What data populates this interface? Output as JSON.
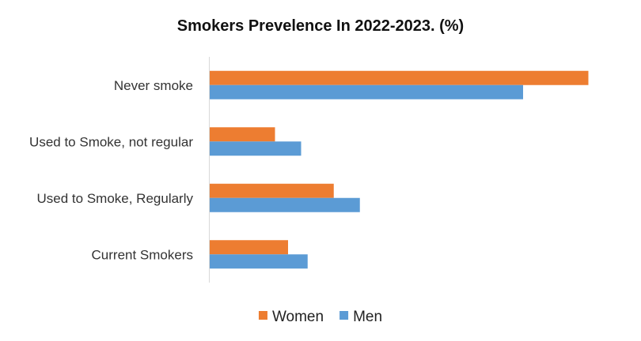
{
  "chart_data": {
    "type": "bar",
    "orientation": "horizontal",
    "title": "Smokers Prevelence In 2022-2023. (%)",
    "categories": [
      "Never smoke",
      "Used to Smoke, not regular",
      "Used to Smoke, Regularly",
      "Current Smokers"
    ],
    "series": [
      {
        "name": "Women",
        "color": "#ED7D31",
        "values": [
          58,
          10,
          19,
          12
        ]
      },
      {
        "name": "Men",
        "color": "#5B9BD5",
        "values": [
          48,
          14,
          23,
          15
        ]
      }
    ],
    "xlabel": "",
    "ylabel": "",
    "xlim": [
      0,
      60
    ],
    "grid": false,
    "value_axis_labels": false,
    "legend": {
      "position": "bottom"
    }
  }
}
